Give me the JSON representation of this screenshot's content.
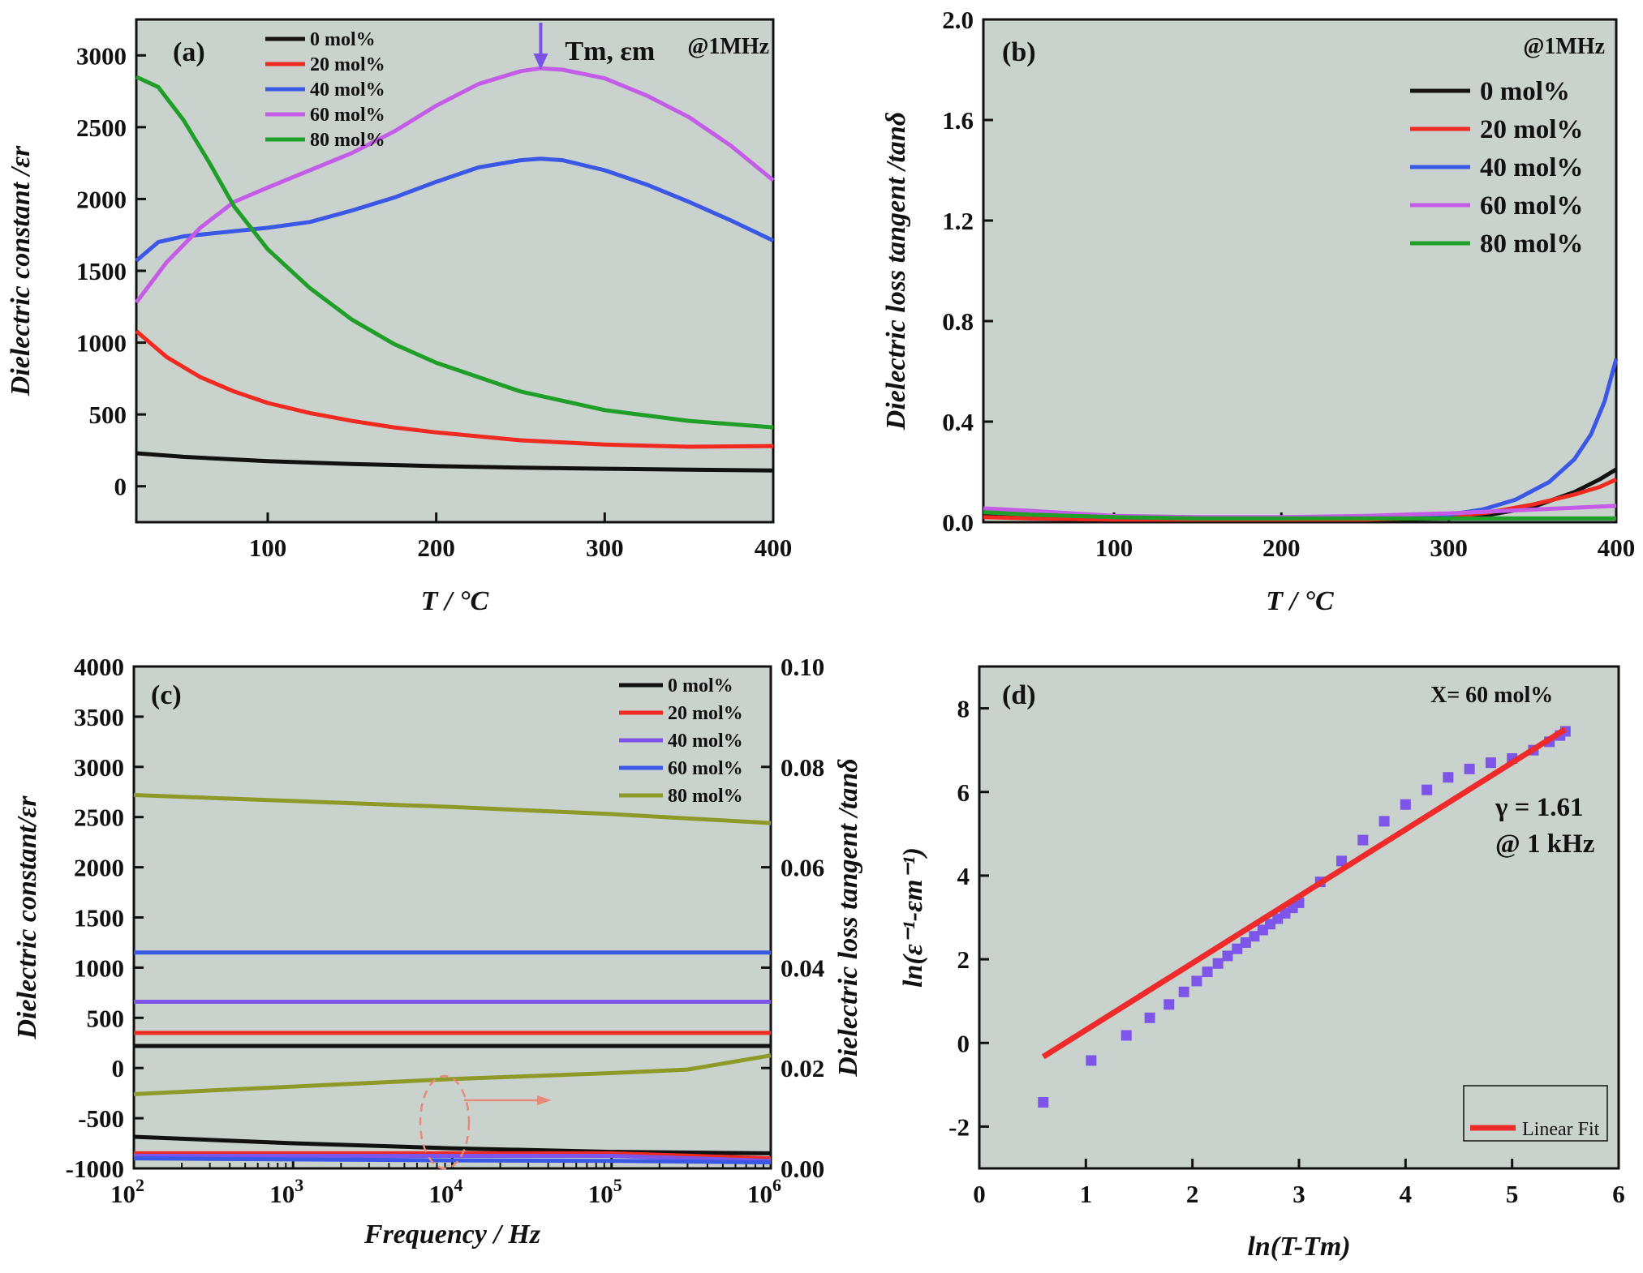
{
  "colors": {
    "plot_bg": "#c9d2cd",
    "black": "#111111",
    "red": "#f02a20",
    "blue": "#3a57e6",
    "magenta": "#c45ce8",
    "green": "#1f9e28",
    "olive": "#8e9a28",
    "purple": "#7d55e8",
    "annot": "#7b52e8",
    "fit_red": "#ee2a2a"
  },
  "chart_data": [
    {
      "id": "a",
      "type": "line",
      "panel_label": "(a)",
      "annotation": "@1MHz",
      "peak_annotation": {
        "label": "Tm, εm",
        "x": 262
      },
      "xlabel": "T / °C",
      "ylabel": "Dielectric constant /εr",
      "xlim": [
        22,
        400
      ],
      "ylim": [
        -250,
        3250
      ],
      "xticks": [
        100,
        200,
        300,
        400
      ],
      "yticks": [
        0,
        500,
        1000,
        1500,
        2000,
        2500,
        3000
      ],
      "legend": "top-left",
      "series": [
        {
          "name": "0 mol%",
          "color_key": "black",
          "x": [
            22,
            50,
            100,
            150,
            200,
            250,
            300,
            350,
            400
          ],
          "y": [
            230,
            205,
            175,
            155,
            140,
            130,
            122,
            115,
            110
          ]
        },
        {
          "name": "20 mol%",
          "color_key": "red",
          "x": [
            22,
            40,
            60,
            80,
            100,
            125,
            150,
            175,
            200,
            250,
            300,
            350,
            400
          ],
          "y": [
            1080,
            900,
            760,
            660,
            580,
            510,
            455,
            410,
            375,
            320,
            290,
            275,
            280
          ]
        },
        {
          "name": "40 mol%",
          "color_key": "blue",
          "x": [
            22,
            35,
            50,
            75,
            100,
            125,
            150,
            175,
            200,
            225,
            250,
            262,
            275,
            300,
            325,
            350,
            375,
            400
          ],
          "y": [
            1570,
            1700,
            1740,
            1770,
            1800,
            1840,
            1920,
            2010,
            2120,
            2220,
            2270,
            2280,
            2270,
            2200,
            2100,
            1980,
            1850,
            1710
          ]
        },
        {
          "name": "60 mol%",
          "color_key": "magenta",
          "x": [
            22,
            40,
            60,
            80,
            100,
            125,
            150,
            175,
            200,
            225,
            250,
            262,
            275,
            300,
            325,
            350,
            375,
            400
          ],
          "y": [
            1280,
            1560,
            1800,
            1980,
            2080,
            2200,
            2320,
            2470,
            2650,
            2800,
            2890,
            2910,
            2900,
            2840,
            2720,
            2570,
            2370,
            2130
          ]
        },
        {
          "name": "80 mol%",
          "color_key": "green",
          "x": [
            22,
            35,
            50,
            65,
            80,
            100,
            125,
            150,
            175,
            200,
            250,
            300,
            350,
            400
          ],
          "y": [
            2850,
            2780,
            2550,
            2260,
            1950,
            1650,
            1380,
            1160,
            990,
            860,
            660,
            530,
            455,
            410
          ]
        }
      ]
    },
    {
      "id": "b",
      "type": "line",
      "panel_label": "(b)",
      "annotation": "@1MHz",
      "xlabel": "T / °C",
      "ylabel": "Dielectric loss tangent /tanδ",
      "xlim": [
        22,
        400
      ],
      "ylim": [
        0,
        2.0
      ],
      "xticks": [
        100,
        200,
        300,
        400
      ],
      "yticks": [
        0.0,
        0.4,
        0.8,
        1.2,
        1.6,
        2.0
      ],
      "ytick_labels": [
        "0.0",
        "0.4",
        "0.8",
        "1.2",
        "1.6",
        "2.0"
      ],
      "legend": "top-right",
      "series": [
        {
          "name": "0 mol%",
          "color_key": "black",
          "x": [
            22,
            50,
            100,
            150,
            200,
            250,
            300,
            325,
            350,
            375,
            390,
            400
          ],
          "y": [
            0.03,
            0.02,
            0.015,
            0.01,
            0.01,
            0.01,
            0.015,
            0.03,
            0.06,
            0.12,
            0.17,
            0.21
          ]
        },
        {
          "name": "20 mol%",
          "color_key": "red",
          "x": [
            22,
            50,
            100,
            150,
            200,
            250,
            300,
            325,
            350,
            375,
            390,
            400
          ],
          "y": [
            0.02,
            0.015,
            0.01,
            0.01,
            0.01,
            0.01,
            0.02,
            0.04,
            0.07,
            0.11,
            0.14,
            0.17
          ]
        },
        {
          "name": "40 mol%",
          "color_key": "blue",
          "x": [
            22,
            50,
            100,
            150,
            200,
            250,
            300,
            320,
            340,
            360,
            375,
            385,
            393,
            400
          ],
          "y": [
            0.04,
            0.03,
            0.02,
            0.015,
            0.015,
            0.02,
            0.03,
            0.05,
            0.09,
            0.16,
            0.25,
            0.35,
            0.48,
            0.65
          ]
        },
        {
          "name": "60 mol%",
          "color_key": "magenta",
          "x": [
            22,
            50,
            100,
            150,
            200,
            250,
            300,
            350,
            400
          ],
          "y": [
            0.055,
            0.045,
            0.025,
            0.02,
            0.02,
            0.025,
            0.035,
            0.05,
            0.065
          ]
        },
        {
          "name": "80 mol%",
          "color_key": "green",
          "x": [
            22,
            50,
            100,
            150,
            200,
            250,
            300,
            350,
            400
          ],
          "y": [
            0.04,
            0.03,
            0.02,
            0.015,
            0.015,
            0.015,
            0.015,
            0.015,
            0.015
          ]
        }
      ]
    },
    {
      "id": "c",
      "type": "line",
      "panel_label": "(c)",
      "xlabel": "Frequency / Hz",
      "ylabel": "Dielectric constant/εr",
      "ylabel_right": "Dielectric loss tangent /tanδ",
      "x_scale": "log",
      "xlim": [
        100,
        1000000
      ],
      "ylim": [
        -1000,
        4000
      ],
      "ylim_right": [
        0.0,
        0.1
      ],
      "xticks": [
        100,
        1000,
        10000,
        100000,
        1000000
      ],
      "xtick_exponents": [
        "2",
        "3",
        "4",
        "5",
        "6"
      ],
      "xtick_base": "10",
      "yticks": [
        -1000,
        -500,
        0,
        500,
        1000,
        1500,
        2000,
        2500,
        3000,
        3500,
        4000
      ],
      "yticks_right": [
        0.0,
        0.02,
        0.04,
        0.06,
        0.08,
        0.1
      ],
      "ytick_right_labels": [
        "0.00",
        "0.02",
        "0.04",
        "0.06",
        "0.08",
        "0.10"
      ],
      "legend": "top-right",
      "series": [
        {
          "name": "0 mol%",
          "color_key": "black",
          "x": [
            100,
            1000000
          ],
          "y": [
            220,
            220
          ]
        },
        {
          "name": "20 mol%",
          "color_key": "red",
          "x": [
            100,
            1000000
          ],
          "y": [
            350,
            350
          ]
        },
        {
          "name": "40 mol%",
          "color_key": "purple",
          "x": [
            100,
            1000000
          ],
          "y": [
            660,
            660
          ]
        },
        {
          "name": "60 mol%",
          "color_key": "blue",
          "x": [
            100,
            1000000
          ],
          "y": [
            1150,
            1150
          ]
        },
        {
          "name": "80 mol%",
          "color_key": "olive",
          "x": [
            100,
            1000,
            10000,
            100000,
            1000000
          ],
          "y": [
            2720,
            2660,
            2600,
            2530,
            2440
          ]
        }
      ],
      "loss_series": [
        {
          "name": "0 mol%",
          "color_key": "black",
          "x": [
            100,
            1000,
            10000,
            100000,
            1000000
          ],
          "y": [
            0.0063,
            0.005,
            0.004,
            0.0033,
            0.003
          ]
        },
        {
          "name": "20 mol%",
          "color_key": "red",
          "x": [
            100,
            1000,
            10000,
            100000,
            1000000
          ],
          "y": [
            0.003,
            0.003,
            0.003,
            0.003,
            0.002
          ]
        },
        {
          "name": "40 mol%",
          "color_key": "purple",
          "x": [
            100,
            1000,
            10000,
            100000,
            1000000
          ],
          "y": [
            0.0025,
            0.0025,
            0.0025,
            0.0025,
            0.0015
          ]
        },
        {
          "name": "60 mol%",
          "color_key": "blue",
          "x": [
            100,
            1000,
            10000,
            100000,
            1000000
          ],
          "y": [
            0.002,
            0.0018,
            0.0016,
            0.0015,
            0.0012
          ]
        },
        {
          "name": "80 mol%",
          "color_key": "olive",
          "x": [
            100,
            1000,
            10000,
            100000,
            300000,
            1000000
          ],
          "y": [
            0.0148,
            0.0163,
            0.0178,
            0.019,
            0.0197,
            0.0225
          ]
        }
      ]
    },
    {
      "id": "d",
      "type": "scatter",
      "panel_label": "(d)",
      "annotation": "X= 60 mol%",
      "gamma_text": "γ = 1.61",
      "freq_text": "@ 1 kHz",
      "xlabel": "ln(T-Tm)",
      "ylabel": "ln(ε⁻¹-εm⁻¹)",
      "xlim": [
        0,
        6
      ],
      "ylim": [
        -3,
        9
      ],
      "xticks": [
        0,
        1,
        2,
        3,
        4,
        5,
        6
      ],
      "yticks": [
        -2,
        0,
        2,
        4,
        6,
        8
      ],
      "legend": "bottom-right",
      "points": {
        "x": [
          0.6,
          1.05,
          1.38,
          1.6,
          1.78,
          1.92,
          2.04,
          2.14,
          2.24,
          2.33,
          2.42,
          2.5,
          2.58,
          2.66,
          2.73,
          2.8,
          2.87,
          2.94,
          3.0,
          3.2,
          3.4,
          3.6,
          3.8,
          4.0,
          4.2,
          4.4,
          4.6,
          4.8,
          5.0,
          5.2,
          5.35,
          5.45,
          5.5
        ],
        "y": [
          -1.42,
          -0.42,
          0.18,
          0.6,
          0.92,
          1.22,
          1.48,
          1.7,
          1.9,
          2.08,
          2.25,
          2.4,
          2.55,
          2.7,
          2.84,
          2.97,
          3.1,
          3.23,
          3.35,
          3.85,
          4.35,
          4.85,
          5.3,
          5.7,
          6.05,
          6.35,
          6.55,
          6.7,
          6.8,
          7.0,
          7.2,
          7.35,
          7.45
        ]
      },
      "fit": {
        "name": "Linear Fit",
        "x": [
          0.6,
          5.5
        ],
        "y": [
          -0.33,
          7.5
        ]
      }
    }
  ]
}
